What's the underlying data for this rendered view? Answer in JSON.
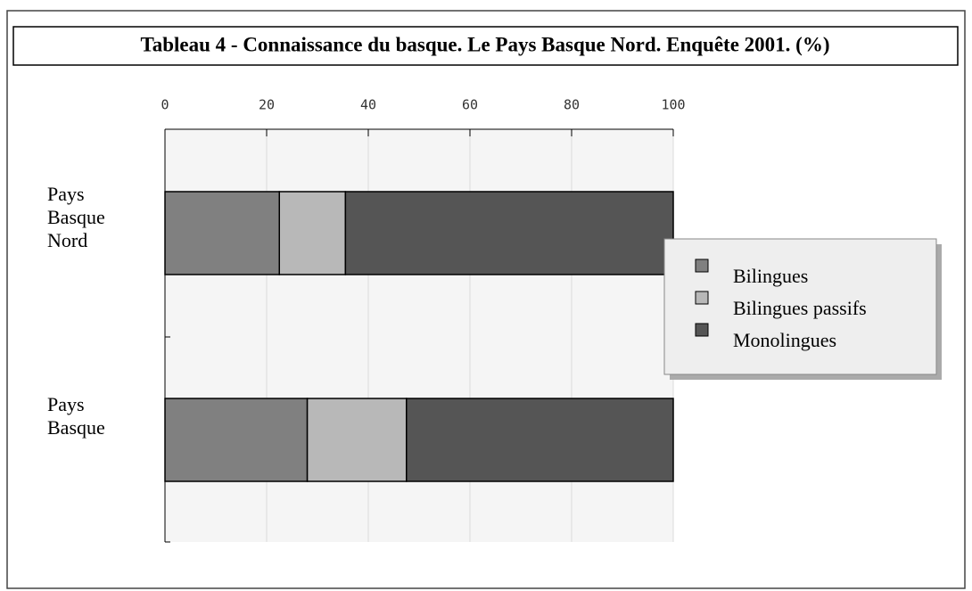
{
  "chart_data": {
    "type": "stacked-barh",
    "title": "Tableau 4 - Connaissance du basque. Le Pays Basque Nord. Enquête 2001. (%)",
    "categories": [
      "Pays Basque Nord",
      "Pays Basque"
    ],
    "series": [
      {
        "name": "Bilingues",
        "color": "#808080",
        "values": [
          22.5,
          28
        ]
      },
      {
        "name": "Bilingues passifs",
        "color": "#b8b8b8",
        "values": [
          13,
          19.5
        ]
      },
      {
        "name": "Monolingues",
        "color": "#555555",
        "values": [
          64.5,
          52.5
        ]
      }
    ],
    "xlim": [
      0,
      100
    ],
    "xticks": [
      0,
      20,
      40,
      60,
      80,
      100
    ],
    "grid": true,
    "legend": "right"
  }
}
